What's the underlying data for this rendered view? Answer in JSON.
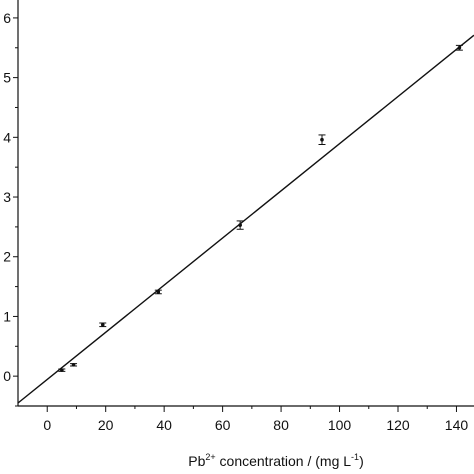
{
  "chart_data": {
    "type": "scatter",
    "title": "",
    "xlabel_prefix": "Pb",
    "xlabel_sup1": "2+",
    "xlabel_mid": " concentration / (mg L",
    "xlabel_sup2": "-1",
    "xlabel_suffix": ")",
    "ylabel": "",
    "xlim": [
      -10,
      146
    ],
    "ylim": [
      -0.5,
      6.3
    ],
    "x_ticks": [
      0,
      20,
      40,
      60,
      80,
      100,
      120,
      140
    ],
    "x_tick_labels": [
      "0",
      "20",
      "40",
      "60",
      "80",
      "100",
      "120",
      "140"
    ],
    "y_ticks": [
      0,
      1,
      2,
      3,
      4,
      5,
      6
    ],
    "y_tick_labels": [
      "0",
      "1",
      "2",
      "3",
      "4",
      "5",
      "6"
    ],
    "grid": false,
    "series": [
      {
        "points": [
          {
            "x": 5,
            "y": 0.1,
            "err": 0.02
          },
          {
            "x": 9,
            "y": 0.19,
            "err": 0.02
          },
          {
            "x": 19,
            "y": 0.86,
            "err": 0.03
          },
          {
            "x": 38,
            "y": 1.41,
            "err": 0.03
          },
          {
            "x": 66,
            "y": 2.53,
            "err": 0.07
          },
          {
            "x": 94,
            "y": 3.96,
            "err": 0.08
          },
          {
            "x": 141,
            "y": 5.5,
            "err": 0.04
          }
        ]
      }
    ],
    "fit_line": {
      "x": [
        -10,
        146
      ],
      "y": [
        -0.45,
        5.71
      ]
    }
  }
}
